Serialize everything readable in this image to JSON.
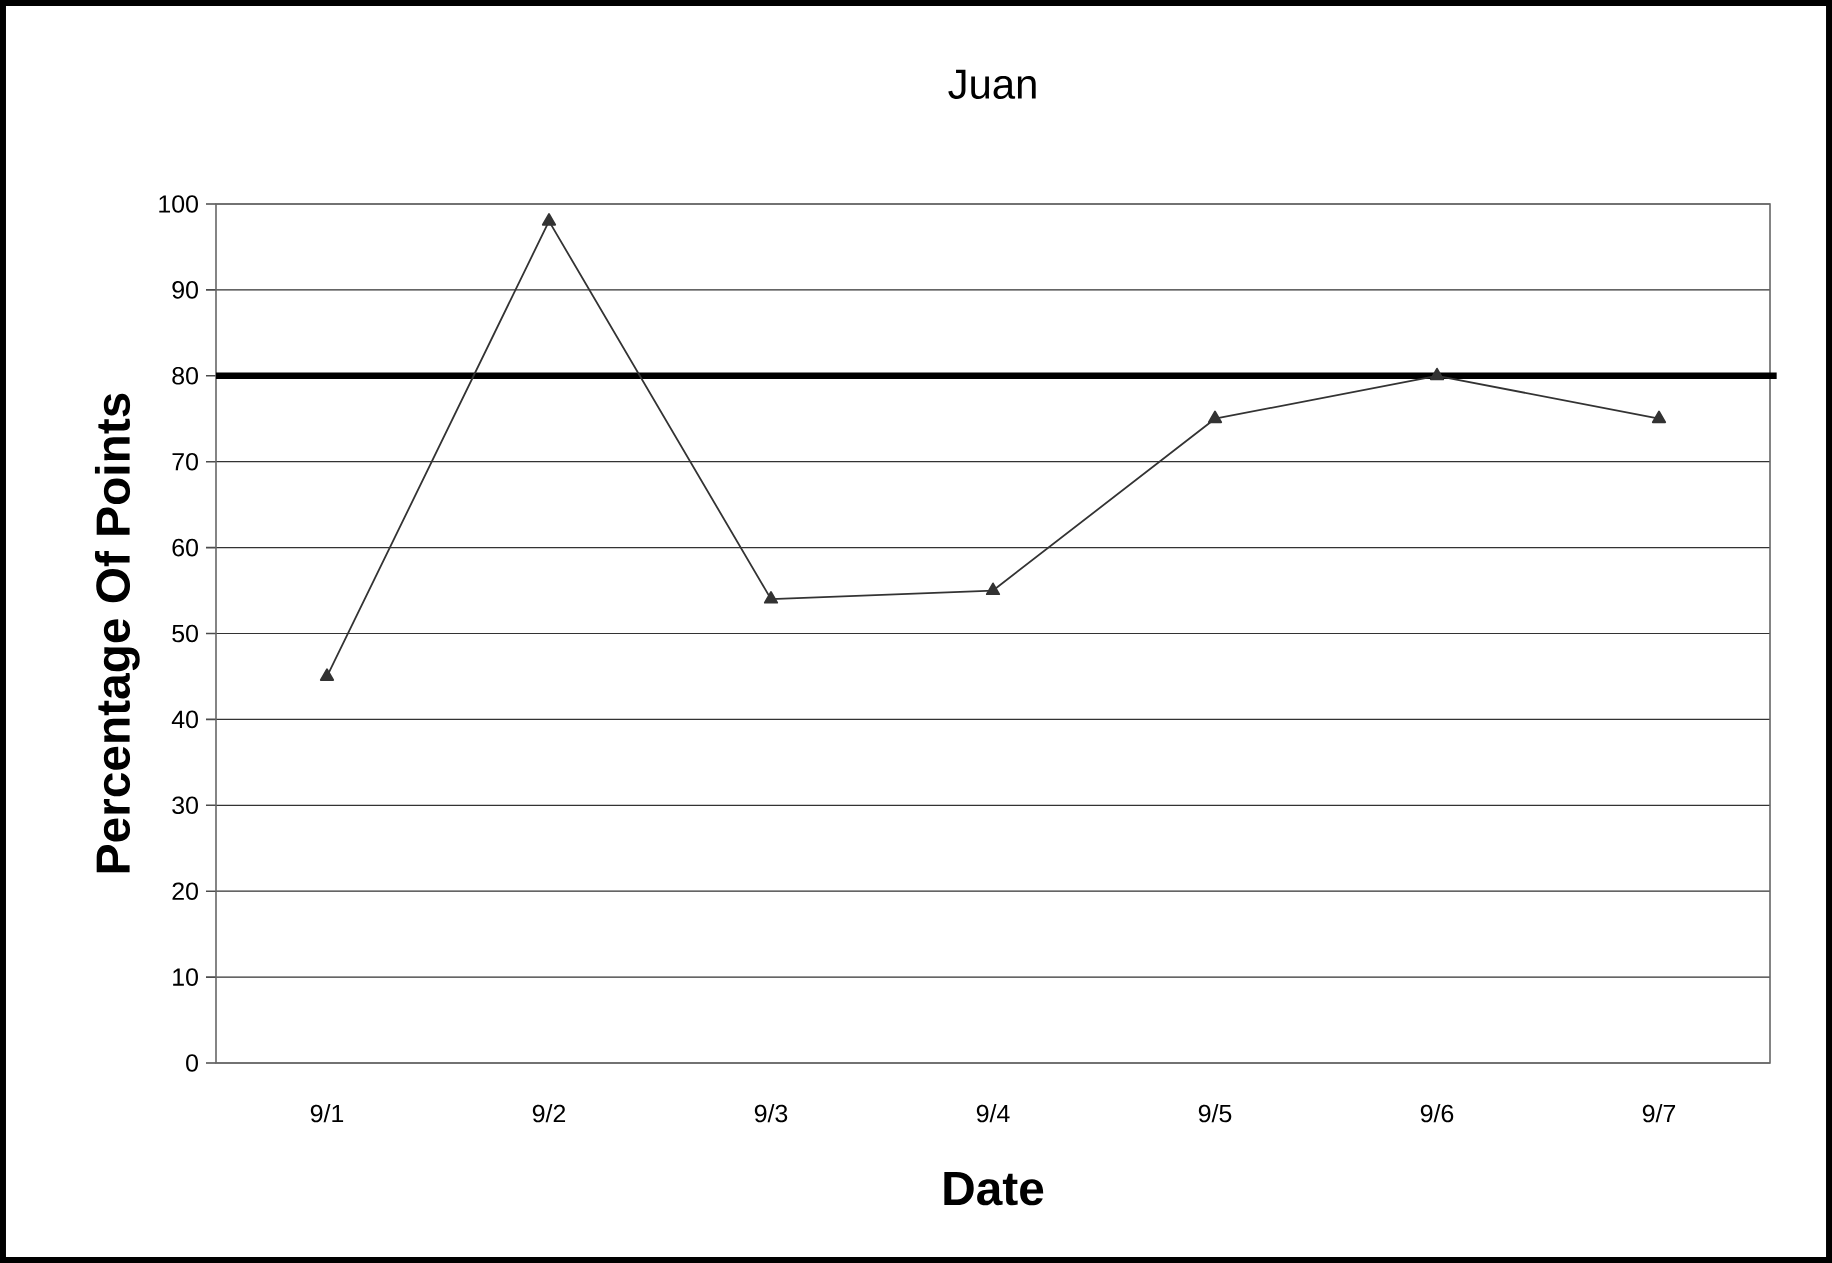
{
  "chart_data": {
    "type": "line",
    "title": "Juan",
    "xlabel": "Date",
    "ylabel": "Percentage Of Points",
    "categories": [
      "9/1",
      "9/2",
      "9/3",
      "9/4",
      "9/5",
      "9/6",
      "9/7"
    ],
    "series": [
      {
        "color": "#333333",
        "values": [
          45,
          98,
          54,
          55,
          75,
          80,
          75
        ]
      }
    ],
    "ylim": [
      0,
      100
    ],
    "yticks": [
      0,
      10,
      20,
      30,
      40,
      50,
      60,
      70,
      80,
      90,
      100
    ],
    "ref_lines": [
      {
        "axis": "y",
        "value": 80,
        "color": "#000000"
      }
    ],
    "grid": "y",
    "marker": "triangle",
    "line_style": "solid"
  }
}
